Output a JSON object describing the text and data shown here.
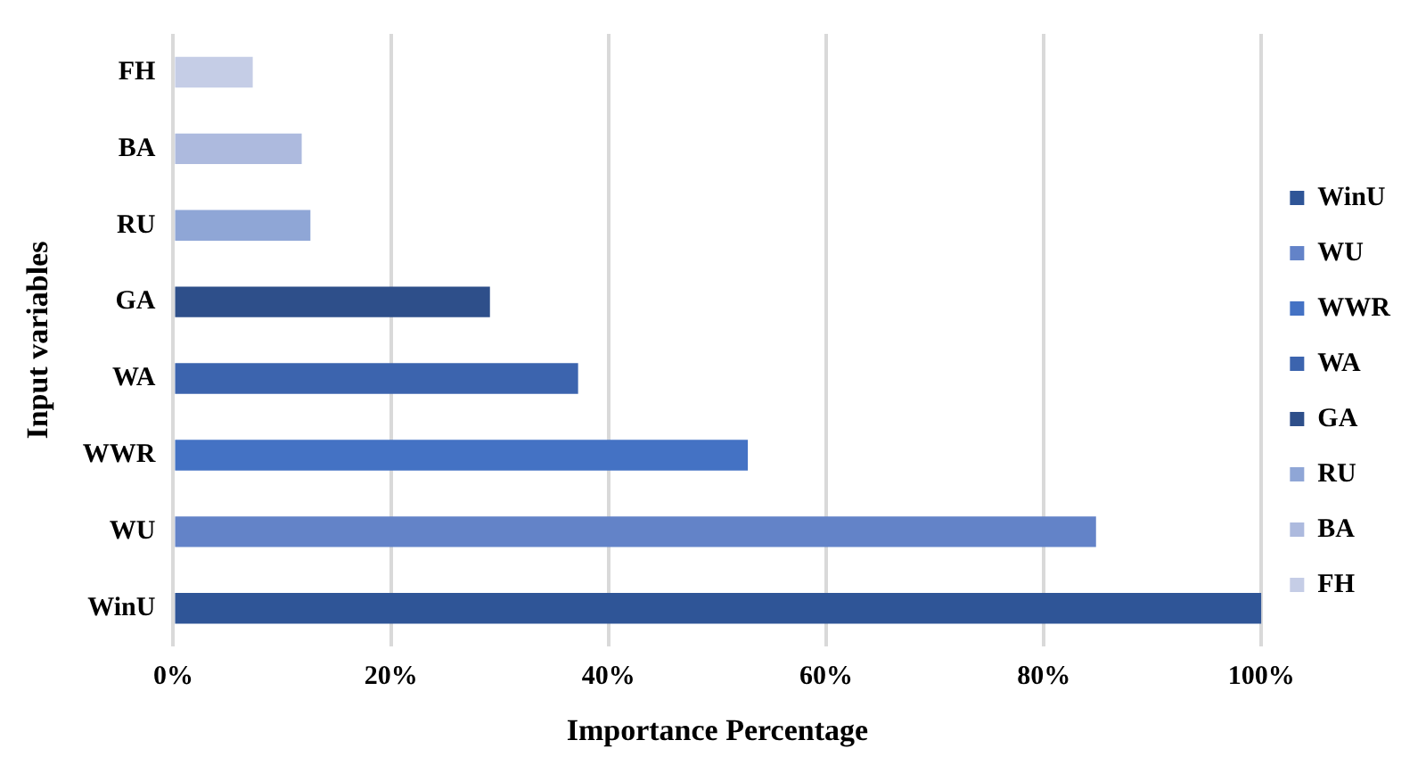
{
  "chart_data": {
    "type": "bar",
    "orientation": "horizontal",
    "stacked": true,
    "xlabel": "Importance Percentage",
    "ylabel": "Input variables",
    "categories": [
      "FH",
      "BA",
      "RU",
      "GA",
      "WA",
      "WWR",
      "WU",
      "WinU"
    ],
    "series": [
      {
        "name": "WinU",
        "color": "#2f5597",
        "values": [
          null,
          null,
          null,
          null,
          null,
          null,
          null,
          100
        ]
      },
      {
        "name": "WU",
        "color": "#6383c8",
        "values": [
          null,
          null,
          null,
          null,
          null,
          null,
          84.8,
          null
        ]
      },
      {
        "name": "WWR",
        "color": "#4472c4",
        "values": [
          null,
          null,
          null,
          null,
          null,
          52.8,
          null,
          null
        ]
      },
      {
        "name": "WA",
        "color": "#3c64ae",
        "values": [
          null,
          null,
          null,
          null,
          37.2,
          null,
          null,
          null
        ]
      },
      {
        "name": "GA",
        "color": "#2e4f8a",
        "values": [
          null,
          null,
          null,
          29.1,
          null,
          null,
          null,
          null
        ]
      },
      {
        "name": "RU",
        "color": "#8fa6d6",
        "values": [
          null,
          null,
          12.6,
          null,
          null,
          null,
          null,
          null
        ]
      },
      {
        "name": "BA",
        "color": "#adbade",
        "values": [
          null,
          11.8,
          null,
          null,
          null,
          null,
          null,
          null
        ]
      },
      {
        "name": "FH",
        "color": "#c5cde6",
        "values": [
          7.3,
          null,
          null,
          null,
          null,
          null,
          null,
          null
        ]
      }
    ],
    "xlim": [
      0,
      100
    ],
    "xticks": [
      {
        "value": 0,
        "label": "0%"
      },
      {
        "value": 20,
        "label": "20%"
      },
      {
        "value": 40,
        "label": "40%"
      },
      {
        "value": 60,
        "label": "60%"
      },
      {
        "value": 80,
        "label": "80%"
      },
      {
        "value": 100,
        "label": "100%"
      }
    ],
    "grid": "x",
    "legend": "right"
  }
}
